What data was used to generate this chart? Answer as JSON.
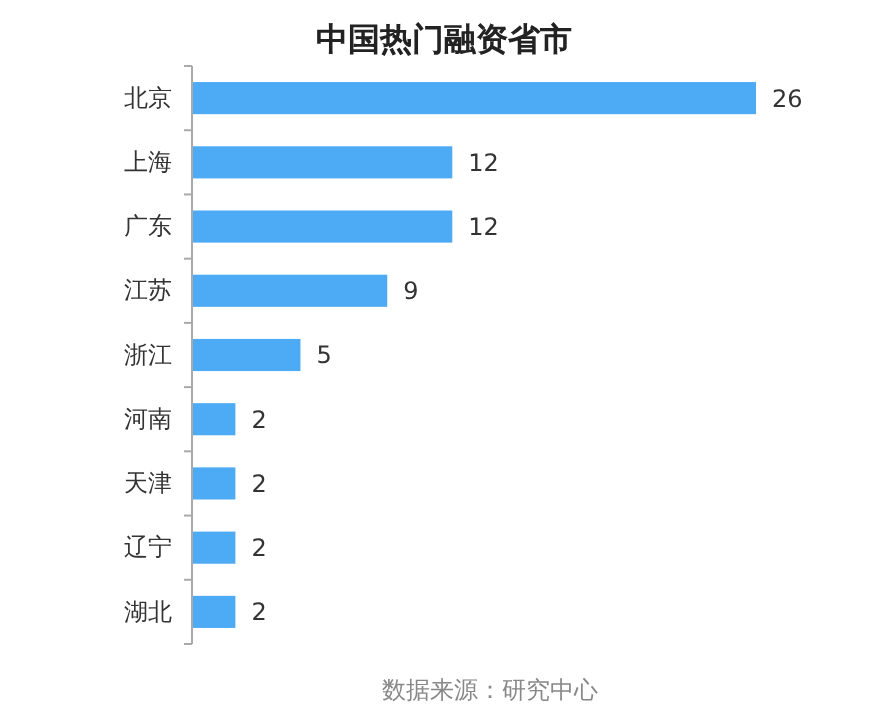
{
  "chart_data": {
    "type": "bar",
    "orientation": "horizontal",
    "title": "中国热门融资省市",
    "categories": [
      "北京",
      "上海",
      "广东",
      "江苏",
      "浙江",
      "河南",
      "天津",
      "辽宁",
      "湖北"
    ],
    "values": [
      26,
      12,
      12,
      9,
      5,
      2,
      2,
      2,
      2
    ],
    "color": "#4daaf5",
    "data_labels": true,
    "annotations": [
      "数据来源：研究中心"
    ]
  }
}
